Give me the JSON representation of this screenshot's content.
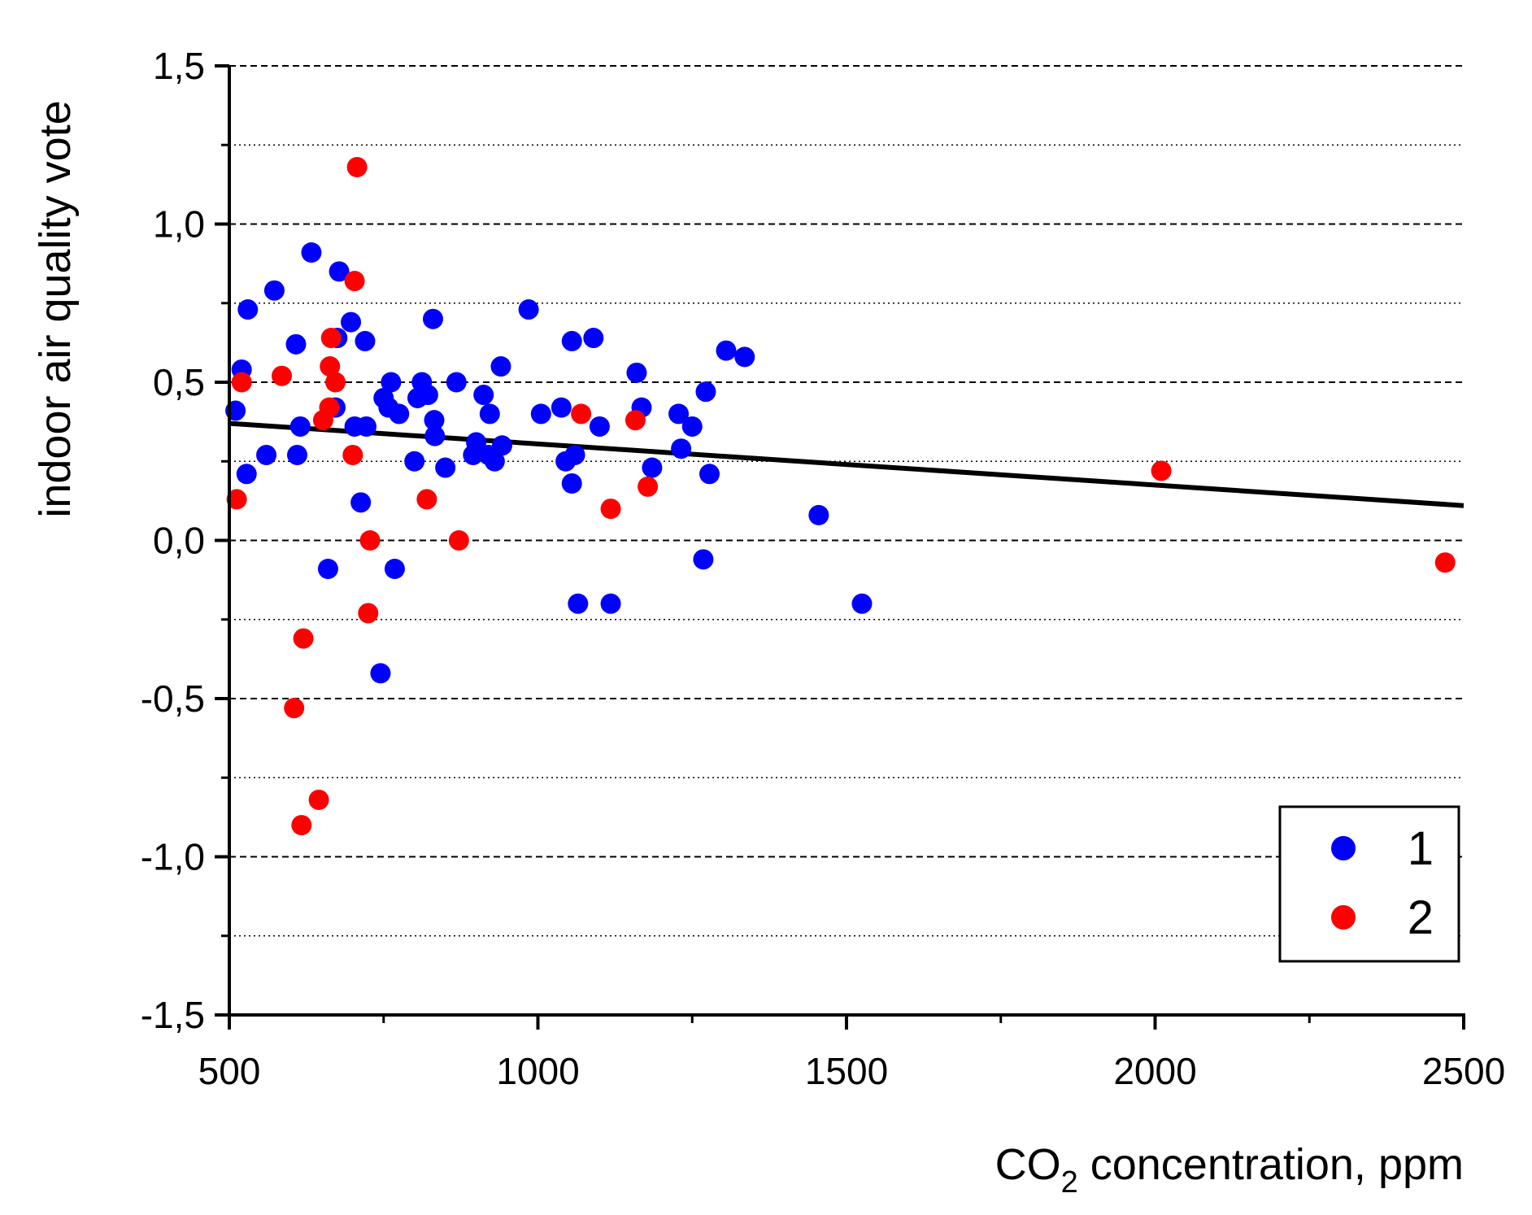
{
  "chart_data": {
    "type": "scatter",
    "title": "",
    "xlabel": {
      "main": "CO",
      "sub": "2",
      "rest": " concentration, ppm"
    },
    "ylabel": "indoor air quality vote",
    "xlim": [
      500,
      2500
    ],
    "ylim": [
      -1.5,
      1.5
    ],
    "x_ticks": [
      500,
      1000,
      1500,
      2000,
      2500
    ],
    "x_tick_labels": [
      "500",
      "1000",
      "1500",
      "2000",
      "2500"
    ],
    "x_minor_ticks": [
      750,
      1250,
      1750,
      2250
    ],
    "y_ticks": [
      1.5,
      1.0,
      0.5,
      0.0,
      -0.5,
      -1.0,
      -1.5
    ],
    "y_tick_labels": [
      "1,5",
      "1,0",
      "0,5",
      "0,0",
      "-0,5",
      "-1,0",
      "-1,5"
    ],
    "y_major_grid": [
      1.5,
      1.0,
      0.5,
      0.0,
      -0.5,
      -1.0
    ],
    "y_minor_grid": [
      1.25,
      0.75,
      0.25,
      -0.25,
      -0.75,
      -1.25
    ],
    "legend_position": "bottom-right",
    "fit_line": {
      "x": [
        500,
        2500
      ],
      "y": [
        0.37,
        0.11
      ],
      "color": "#000000"
    },
    "series": [
      {
        "name": "1",
        "color": "#0000ff",
        "points": [
          [
            510,
            0.41
          ],
          [
            520,
            0.54
          ],
          [
            528,
            0.21
          ],
          [
            530,
            0.73
          ],
          [
            560,
            0.27
          ],
          [
            573,
            0.79
          ],
          [
            608,
            0.62
          ],
          [
            610,
            0.27
          ],
          [
            615,
            0.36
          ],
          [
            633,
            0.91
          ],
          [
            660,
            -0.09
          ],
          [
            672,
            0.42
          ],
          [
            675,
            0.64
          ],
          [
            678,
            0.85
          ],
          [
            697,
            0.69
          ],
          [
            703,
            0.36
          ],
          [
            713,
            0.12
          ],
          [
            720,
            0.63
          ],
          [
            722,
            0.36
          ],
          [
            745,
            -0.42
          ],
          [
            750,
            0.45
          ],
          [
            758,
            0.42
          ],
          [
            762,
            0.5
          ],
          [
            768,
            -0.09
          ],
          [
            775,
            0.4
          ],
          [
            800,
            0.25
          ],
          [
            805,
            0.45
          ],
          [
            812,
            0.5
          ],
          [
            822,
            0.46
          ],
          [
            830,
            0.7
          ],
          [
            832,
            0.38
          ],
          [
            833,
            0.33
          ],
          [
            850,
            0.23
          ],
          [
            868,
            0.5
          ],
          [
            895,
            0.27
          ],
          [
            900,
            0.31
          ],
          [
            912,
            0.46
          ],
          [
            920,
            0.27
          ],
          [
            922,
            0.4
          ],
          [
            930,
            0.25
          ],
          [
            940,
            0.55
          ],
          [
            942,
            0.3
          ],
          [
            985,
            0.73
          ],
          [
            1005,
            0.4
          ],
          [
            1038,
            0.42
          ],
          [
            1045,
            0.25
          ],
          [
            1055,
            0.63
          ],
          [
            1055,
            0.18
          ],
          [
            1060,
            0.27
          ],
          [
            1065,
            -0.2
          ],
          [
            1090,
            0.64
          ],
          [
            1100,
            0.36
          ],
          [
            1118,
            -0.2
          ],
          [
            1160,
            0.53
          ],
          [
            1168,
            0.42
          ],
          [
            1185,
            0.23
          ],
          [
            1228,
            0.4
          ],
          [
            1232,
            0.29
          ],
          [
            1250,
            0.36
          ],
          [
            1268,
            -0.06
          ],
          [
            1272,
            0.47
          ],
          [
            1278,
            0.21
          ],
          [
            1305,
            0.6
          ],
          [
            1335,
            0.58
          ],
          [
            1455,
            0.08
          ],
          [
            1525,
            -0.2
          ]
        ]
      },
      {
        "name": "2",
        "color": "#ff0000",
        "points": [
          [
            512,
            0.13
          ],
          [
            520,
            0.5
          ],
          [
            585,
            0.52
          ],
          [
            605,
            -0.53
          ],
          [
            617,
            -0.9
          ],
          [
            620,
            -0.31
          ],
          [
            645,
            -0.82
          ],
          [
            652,
            0.38
          ],
          [
            662,
            0.42
          ],
          [
            663,
            0.55
          ],
          [
            665,
            0.64
          ],
          [
            672,
            0.5
          ],
          [
            700,
            0.27
          ],
          [
            703,
            0.82
          ],
          [
            707,
            1.18
          ],
          [
            725,
            -0.23
          ],
          [
            728,
            0.0
          ],
          [
            820,
            0.13
          ],
          [
            872,
            0.0
          ],
          [
            1070,
            0.4
          ],
          [
            1118,
            0.1
          ],
          [
            1158,
            0.38
          ],
          [
            1178,
            0.17
          ],
          [
            2010,
            0.22
          ],
          [
            2470,
            -0.07
          ]
        ]
      }
    ]
  }
}
